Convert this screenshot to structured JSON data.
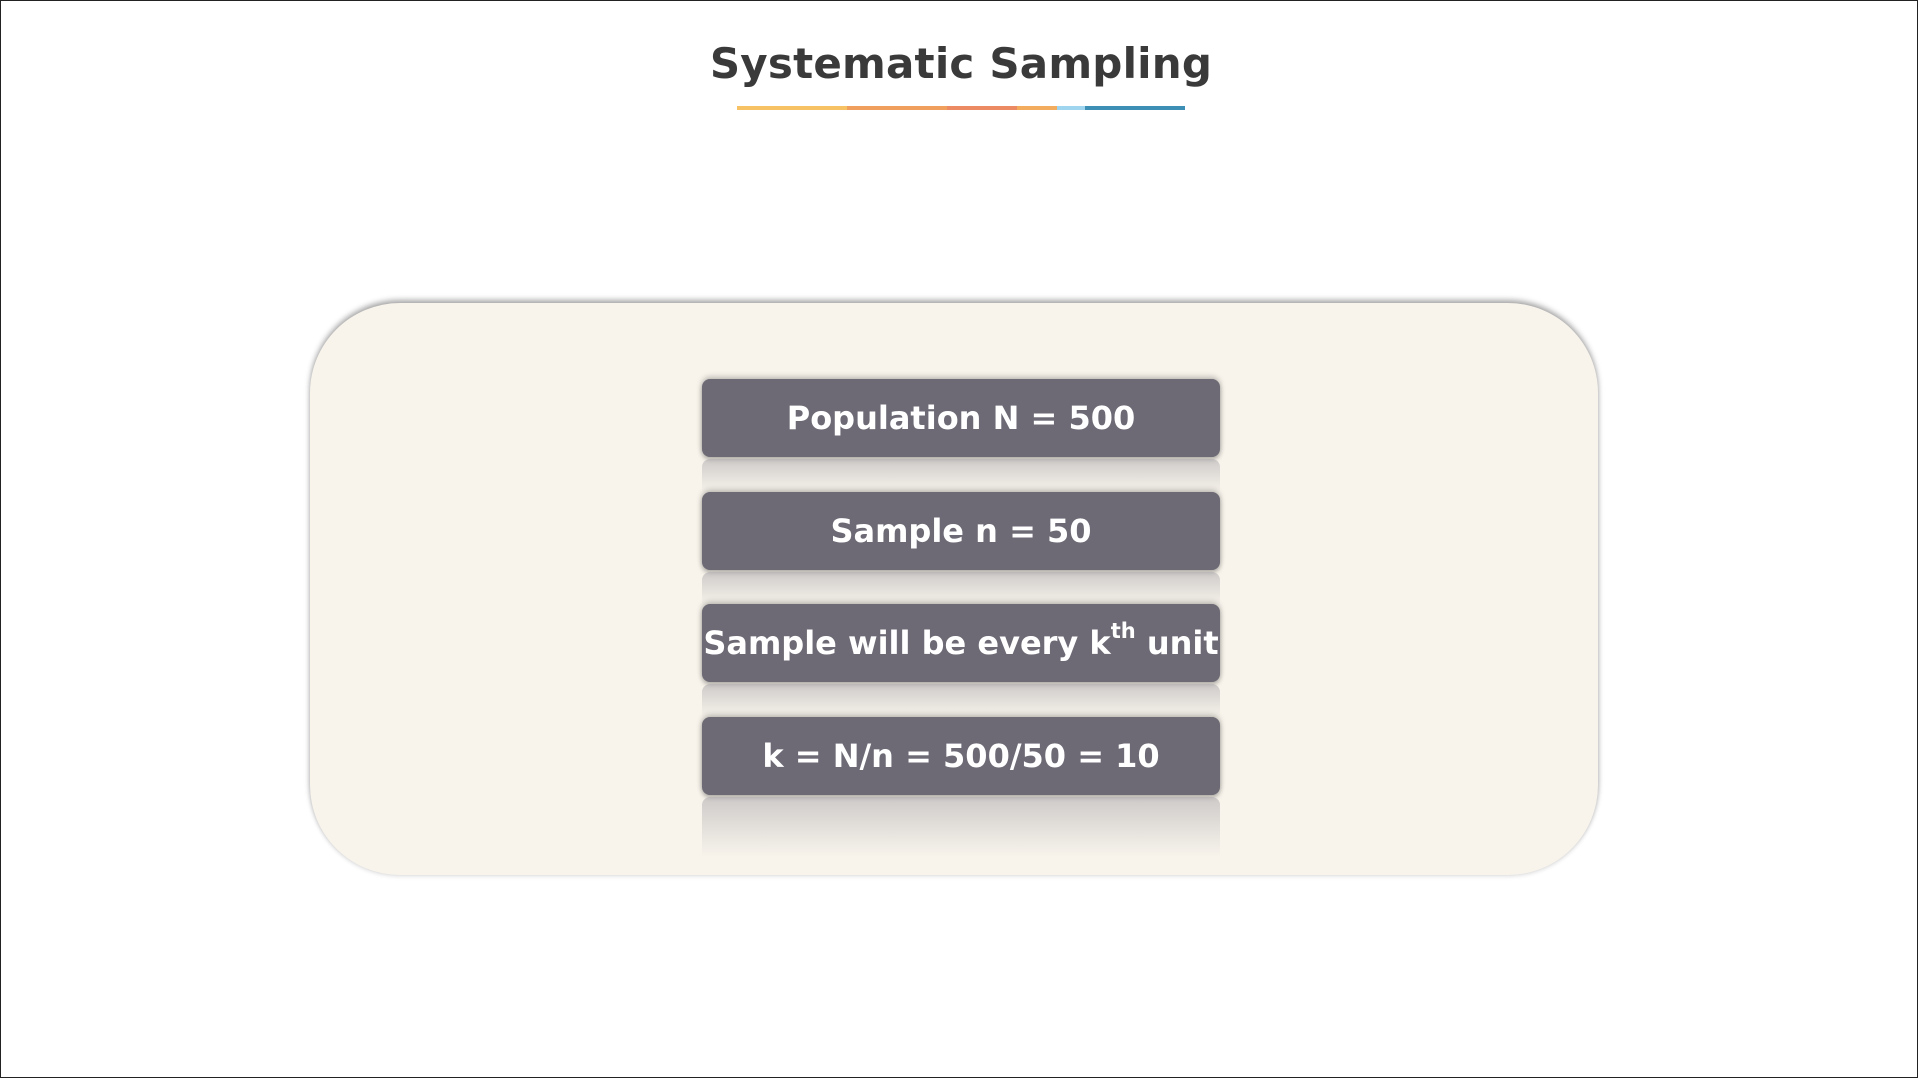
{
  "slide": {
    "title": "Systematic Sampling",
    "underline_colors": [
      "#f6c263",
      "#f0a05c",
      "#ec8a64",
      "#f3ab5d",
      "#9fd5ef",
      "#3d8fb6"
    ]
  },
  "steps": [
    {
      "text": "Population N = 500"
    },
    {
      "text": "Sample n = 50"
    },
    {
      "text_before": "Sample will be every k",
      "sup": "th",
      "text_after": " unit"
    },
    {
      "text": "k = N/n = 500/50 = 10"
    }
  ],
  "colors": {
    "panel": "#f8f4ec",
    "box": "#6d6a75",
    "title": "#3a3a3a"
  }
}
